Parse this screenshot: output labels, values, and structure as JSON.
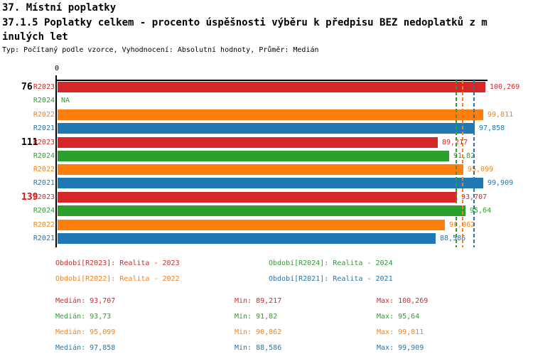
{
  "header": {
    "line1": "37. Místní poplatky",
    "line2": "37.1.5 Poplatky celkem - procento úspěšnosti výběru k předpisu BEZ nedoplatků z m",
    "line3": "inulých let",
    "subtitle": "Typ: Počítaný podle vzorce, Vyhodnocení: Absolutní hodnoty, Průměr: Medián"
  },
  "chart_data": {
    "type": "bar",
    "orientation": "horizontal",
    "title": "37.1.5 Poplatky celkem - procento úspěšnosti výběru k předpisu BEZ nedoplatků z minulých let",
    "axis": {
      "origin_label": "0",
      "x_min": 0,
      "x_max": 100.269,
      "grid": false
    },
    "series_colors": {
      "R2023": "#d62728",
      "R2024": "#2ca02c",
      "R2022": "#ff7f0e",
      "R2021": "#1f77b4"
    },
    "groups": [
      {
        "label": "76",
        "label_color": "#000000",
        "bars": [
          {
            "series": "R2023",
            "value": 100.269,
            "display": "100,269"
          },
          {
            "series": "R2024",
            "value": null,
            "display": "NA"
          },
          {
            "series": "R2022",
            "value": 99.811,
            "display": "99,811"
          },
          {
            "series": "R2021",
            "value": 97.858,
            "display": "97,858"
          }
        ]
      },
      {
        "label": "111",
        "label_color": "#000000",
        "bars": [
          {
            "series": "R2023",
            "value": 89.217,
            "display": "89,217"
          },
          {
            "series": "R2024",
            "value": 91.82,
            "display": "91,82"
          },
          {
            "series": "R2022",
            "value": 95.099,
            "display": "95,099"
          },
          {
            "series": "R2021",
            "value": 99.909,
            "display": "99,909"
          }
        ]
      },
      {
        "label": "139",
        "label_color": "#dd1111",
        "bars": [
          {
            "series": "R2023",
            "value": 93.707,
            "display": "93,707"
          },
          {
            "series": "R2024",
            "value": 95.64,
            "display": "95,64"
          },
          {
            "series": "R2022",
            "value": 90.862,
            "display": "90,862"
          },
          {
            "series": "R2021",
            "value": 88.586,
            "display": "88,586"
          }
        ]
      }
    ],
    "median_lines": [
      {
        "series": "R2023",
        "value": 93.707
      },
      {
        "series": "R2024",
        "value": 93.73
      },
      {
        "series": "R2022",
        "value": 95.099
      },
      {
        "series": "R2021",
        "value": 97.858
      }
    ],
    "stats": [
      {
        "series": "R2023",
        "median": 93.707,
        "min": 89.217,
        "max": 100.269
      },
      {
        "series": "R2024",
        "median": 93.73,
        "min": 91.82,
        "max": 95.64
      },
      {
        "series": "R2022",
        "median": 95.099,
        "min": 90.862,
        "max": 99.811
      },
      {
        "series": "R2021",
        "median": 97.858,
        "min": 88.586,
        "max": 99.909
      }
    ]
  },
  "legend": [
    {
      "series": "R2023",
      "label": "Období[R2023]: Realita - 2023",
      "col": 0,
      "row": 0
    },
    {
      "series": "R2024",
      "label": "Období[R2024]: Realita - 2024",
      "col": 1,
      "row": 0
    },
    {
      "series": "R2022",
      "label": "Období[R2022]: Realita - 2022",
      "col": 0,
      "row": 1
    },
    {
      "series": "R2021",
      "label": "Období[R2021]: Realita - 2021",
      "col": 1,
      "row": 1
    }
  ],
  "stats_rows": [
    {
      "series": "R2023",
      "cells": [
        "Medián: 93,707",
        "Min: 89,217",
        "Max: 100,269"
      ]
    },
    {
      "series": "R2024",
      "cells": [
        "Medián: 93,73",
        "Min: 91,82",
        "Max: 95,64"
      ]
    },
    {
      "series": "R2022",
      "cells": [
        "Medián: 95,099",
        "Min: 90,862",
        "Max: 99,811"
      ]
    },
    {
      "series": "R2021",
      "cells": [
        "Medián: 97,858",
        "Min: 88,586",
        "Max: 99,909"
      ]
    }
  ]
}
